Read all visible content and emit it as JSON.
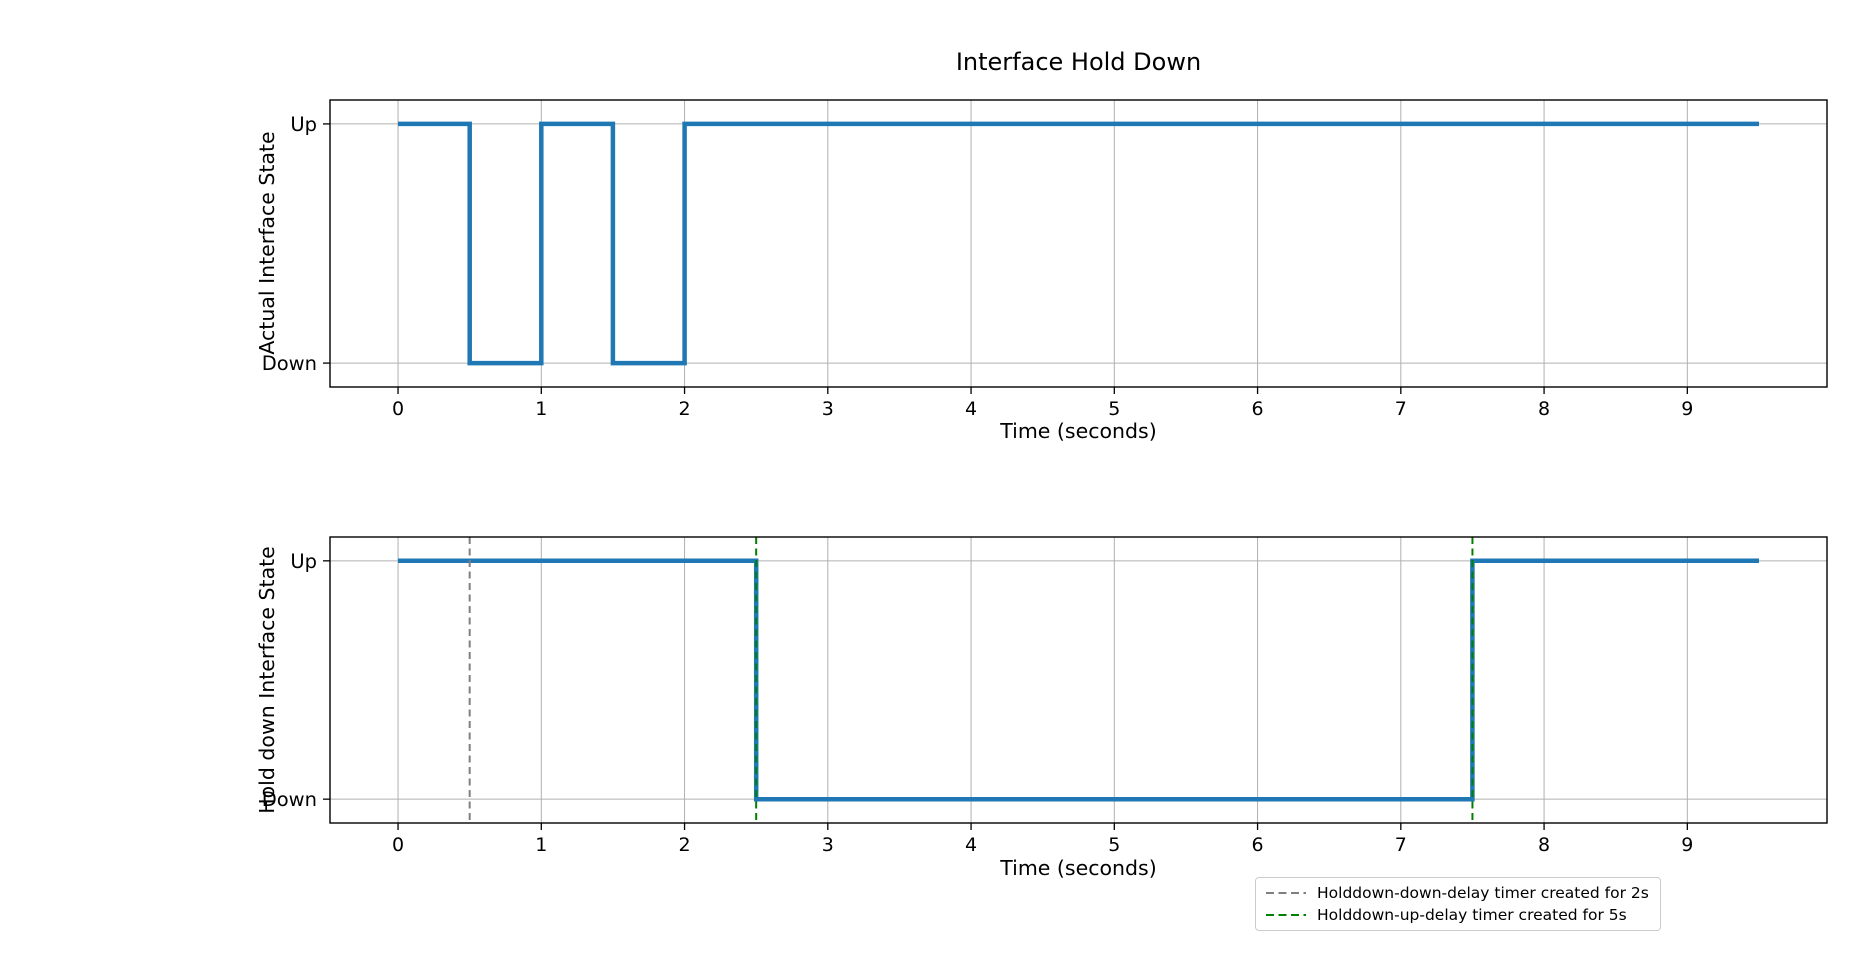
{
  "figure": {
    "background": "#ffffff",
    "text_color": "#000000",
    "grid_color": "#b0b0b0",
    "spine_color": "#000000"
  },
  "chart_data": [
    {
      "type": "line",
      "subtype": "step",
      "title": "Interface Hold Down",
      "xlabel": "Time (seconds)",
      "ylabel": "Actual Interface State",
      "xlim": [
        -0.475,
        9.975
      ],
      "ylim": [
        -0.1,
        1.1
      ],
      "x_ticks": [
        0,
        1,
        2,
        3,
        4,
        5,
        6,
        7,
        8,
        9
      ],
      "y_ticks": [
        {
          "value": 1,
          "label": "Up"
        },
        {
          "value": 0,
          "label": "Down"
        }
      ],
      "grid": true,
      "legend_position": "none",
      "series": [
        {
          "name": "actual-interface-state",
          "color": "#1f77b4",
          "width": 4.5,
          "points": [
            [
              0,
              1
            ],
            [
              0.5,
              1
            ],
            [
              0.5,
              0
            ],
            [
              1,
              0
            ],
            [
              1,
              1
            ],
            [
              1.5,
              1
            ],
            [
              1.5,
              0
            ],
            [
              2,
              0
            ],
            [
              2,
              1
            ],
            [
              9.5,
              1
            ]
          ]
        }
      ],
      "vlines": []
    },
    {
      "type": "line",
      "subtype": "step",
      "title": "",
      "xlabel": "Time (seconds)",
      "ylabel": "Hold down Interface State",
      "xlim": [
        -0.475,
        9.975
      ],
      "ylim": [
        -0.1,
        1.1
      ],
      "x_ticks": [
        0,
        1,
        2,
        3,
        4,
        5,
        6,
        7,
        8,
        9
      ],
      "y_ticks": [
        {
          "value": 1,
          "label": "Up"
        },
        {
          "value": 0,
          "label": "Down"
        }
      ],
      "grid": true,
      "legend_position": "below-right",
      "series": [
        {
          "name": "holddown-interface-state",
          "color": "#1f77b4",
          "width": 4.5,
          "points": [
            [
              0,
              1
            ],
            [
              2.5,
              1
            ],
            [
              2.5,
              0
            ],
            [
              7.5,
              0
            ],
            [
              7.5,
              1
            ],
            [
              9.5,
              1
            ]
          ]
        }
      ],
      "vlines": [
        {
          "x": 0.5,
          "color": "#7f7f7f",
          "dash": "7 4.5",
          "width": 2,
          "legend": "Holddown-down-delay timer created for 2s"
        },
        {
          "x": 2.5,
          "color": "#008000",
          "dash": "7 4.5",
          "width": 2,
          "legend": "Holddown-up-delay timer created for 5s"
        },
        {
          "x": 7.5,
          "color": "#008000",
          "dash": "7 4.5",
          "width": 2,
          "legend": ""
        }
      ],
      "legend": {
        "entries": [
          {
            "label": "Holddown-down-delay timer created for 2s",
            "color": "#7f7f7f",
            "style": "dashed"
          },
          {
            "label": "Holddown-up-delay timer created for 5s",
            "color": "#008000",
            "style": "dashed"
          }
        ]
      }
    }
  ]
}
